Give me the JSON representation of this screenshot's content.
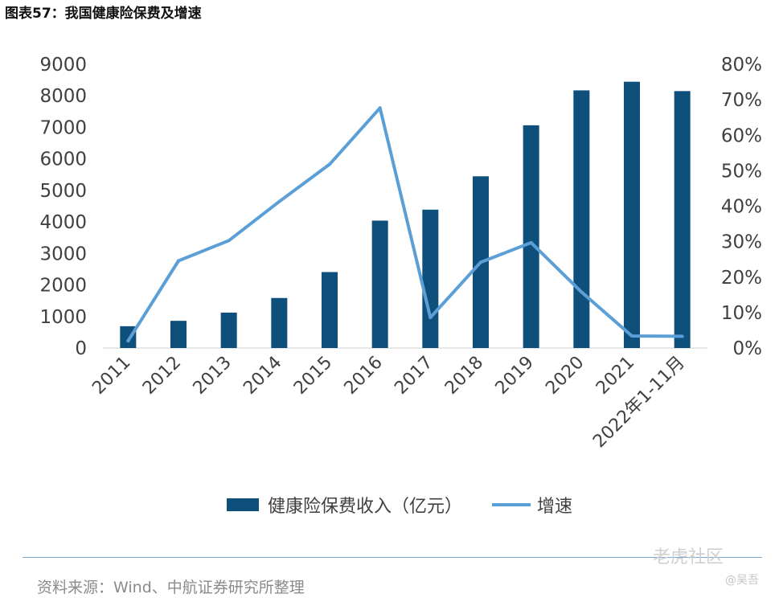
{
  "header": {
    "title": "图表57：我国健康险保费及增速"
  },
  "chart_data": {
    "type": "bar",
    "categories": [
      "2011",
      "2012",
      "2013",
      "2014",
      "2015",
      "2016",
      "2017",
      "2018",
      "2019",
      "2020",
      "2021",
      "2022年1-11月"
    ],
    "series": [
      {
        "name": "健康险保费收入（亿元）",
        "type": "bar",
        "axis": "left",
        "values": [
          692,
          863,
          1124,
          1587,
          2410,
          4042,
          4389,
          5448,
          7066,
          8173,
          8447,
          8150
        ]
      },
      {
        "name": "增速",
        "type": "line",
        "axis": "right",
        "values": [
          0.02,
          0.246,
          0.303,
          0.413,
          0.518,
          0.677,
          0.086,
          0.242,
          0.297,
          0.158,
          0.034,
          0.033
        ]
      }
    ],
    "left_axis": {
      "ylim": [
        0,
        9000
      ],
      "ticks": [
        "0",
        "1000",
        "2000",
        "3000",
        "4000",
        "5000",
        "6000",
        "7000",
        "8000",
        "9000"
      ]
    },
    "right_axis": {
      "ylim": [
        0,
        0.8
      ],
      "ticks": [
        "0%",
        "10%",
        "20%",
        "30%",
        "40%",
        "50%",
        "60%",
        "70%",
        "80%"
      ]
    },
    "grid": false,
    "legend_position": "bottom",
    "colors": {
      "bar": "#0e4f7c",
      "line": "#5b9fd6"
    }
  },
  "footer": {
    "source": "资料来源：Wind、中航证券研究所整理"
  },
  "watermark": {
    "logo_text": "老虎社区",
    "user": "@吴吾"
  }
}
